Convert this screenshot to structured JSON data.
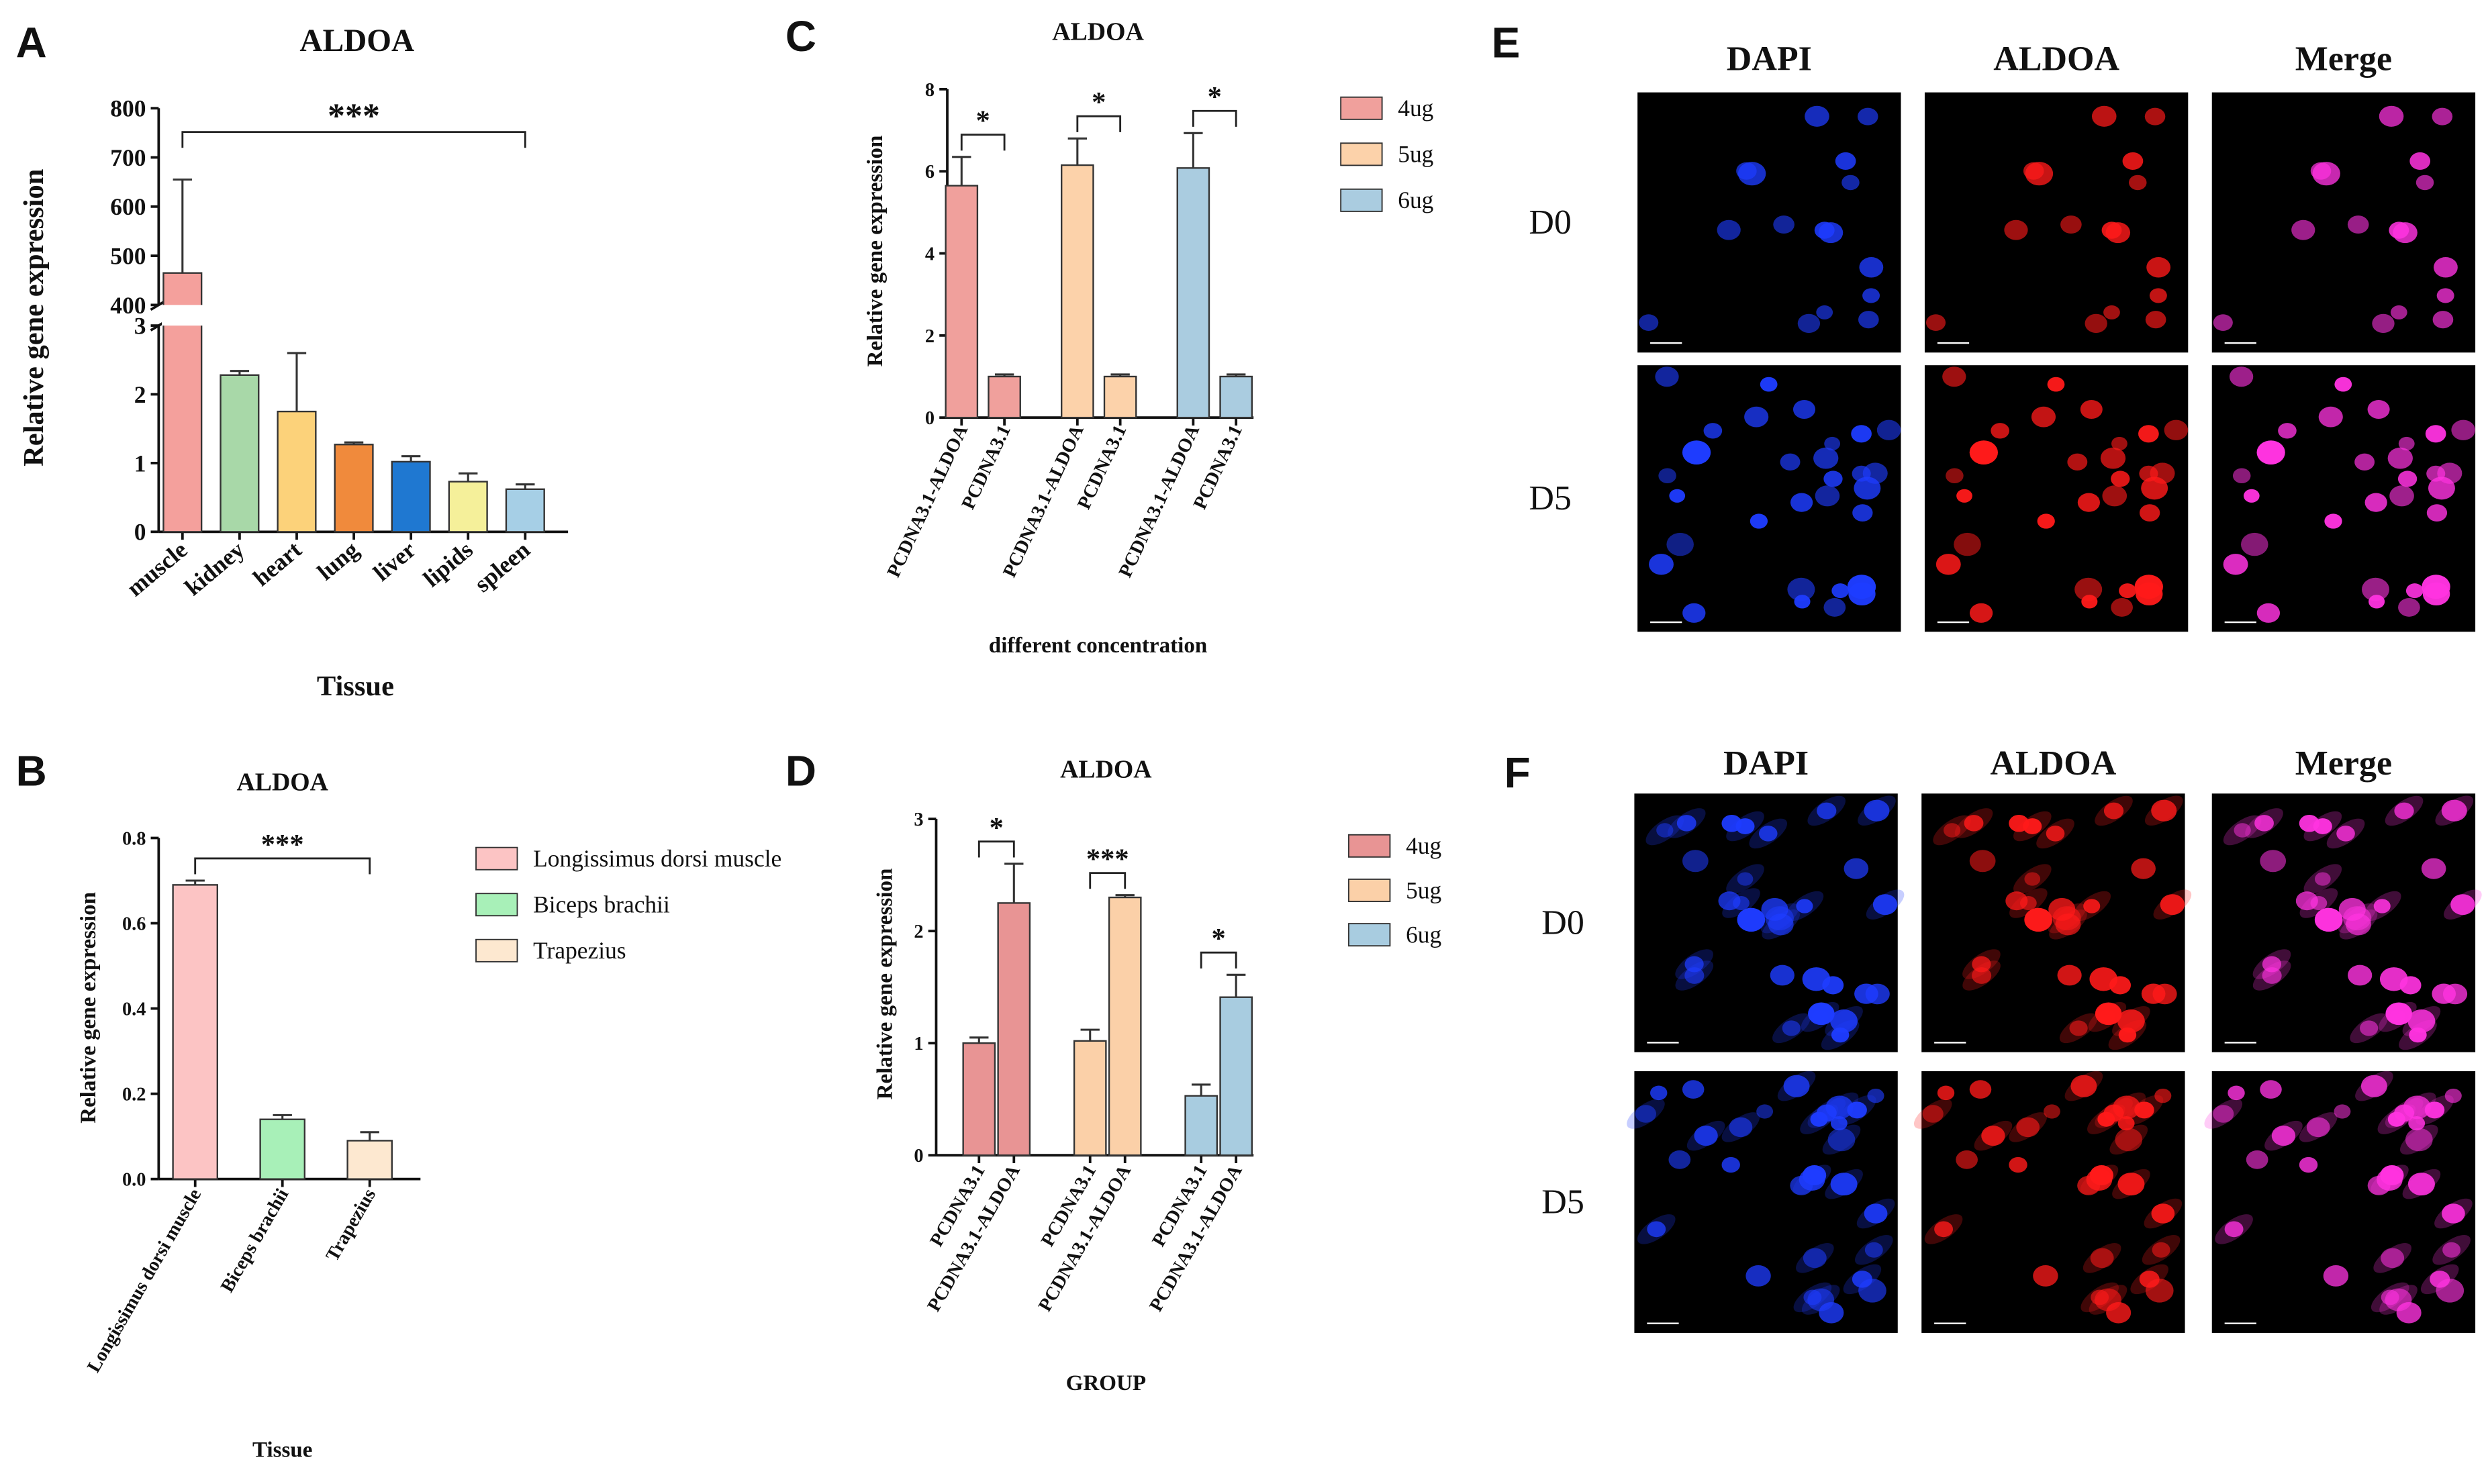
{
  "chart_data": [
    {
      "panel": "A",
      "type": "bar",
      "title": "ALDOA",
      "x_label": "Tissue",
      "y_label": "Relative gene expression",
      "categories": [
        "muscle",
        "kidney",
        "heart",
        "lung",
        "liver",
        "lipids",
        "spleen"
      ],
      "values": [
        465,
        2.28,
        1.75,
        1.27,
        1.02,
        0.73,
        0.62
      ],
      "errors": [
        190,
        0.06,
        0.85,
        0.03,
        0.08,
        0.12,
        0.07
      ],
      "colors": [
        "#f4a09c",
        "#a8d8a8",
        "#fcd27a",
        "#f08a3c",
        "#1f78d1",
        "#f5f09a",
        "#a6cfe6"
      ],
      "significance": "***",
      "ylim": [
        0,
        800
      ],
      "axis_break": [
        3,
        400
      ],
      "yticks": [
        0,
        1,
        2,
        3,
        400,
        500,
        600,
        700,
        800
      ]
    },
    {
      "panel": "B",
      "type": "bar",
      "title": "ALDOA",
      "x_label": "Tissue",
      "y_label": "Relative gene expression",
      "categories": [
        "Longissimus dorsi muscle",
        "Biceps brachii",
        "Trapezius"
      ],
      "values": [
        0.69,
        0.14,
        0.09
      ],
      "errors": [
        0.01,
        0.01,
        0.02
      ],
      "colors": [
        "#fcc4c4",
        "#a8f0b8",
        "#fde8d0"
      ],
      "significance": "***",
      "legend": true,
      "ylim": [
        0,
        0.8
      ],
      "yticks": [
        {
          "value": 0,
          "label": "0.0"
        },
        0.2,
        0.4,
        0.6,
        0.8
      ]
    },
    {
      "panel": "C",
      "type": "bar",
      "title": "ALDOA",
      "x_label": "different concentration",
      "y_label": "Relative gene expression",
      "categories": [
        "PCDNA3.1-ALDOA",
        "PCDNA3.1",
        "PCDNA3.1-ALDOA",
        "PCDNA3.1",
        "PCDNA3.1-ALDOA",
        "PCDNA3.1"
      ],
      "series": [
        {
          "name": "4ug",
          "color": "#f0a09c",
          "values": [
            5.65,
            1.0,
            null,
            null,
            null,
            null
          ],
          "errors": [
            0.7,
            0.05,
            null,
            null,
            null,
            null
          ],
          "significance": "*"
        },
        {
          "name": "5ug",
          "color": "#fcd2aa",
          "values": [
            null,
            null,
            6.15,
            1.0,
            null,
            null
          ],
          "errors": [
            null,
            null,
            0.65,
            0.05,
            null,
            null
          ],
          "significance": "*"
        },
        {
          "name": "6ug",
          "color": "#aacce0",
          "values": [
            null,
            null,
            null,
            null,
            6.08,
            1.0
          ],
          "errors": [
            null,
            null,
            null,
            null,
            0.85,
            0.05
          ],
          "significance": "*"
        }
      ],
      "legend": true,
      "ylim": [
        0,
        8
      ],
      "yticks": [
        0,
        2,
        4,
        6,
        8
      ]
    },
    {
      "panel": "D",
      "type": "bar",
      "title": "ALDOA",
      "x_label": "GROUP",
      "y_label": "Relative gene expression",
      "categories": [
        "PCDNA3.1",
        "PCDNA3.1-ALDOA",
        "PCDNA3.1",
        "PCDNA3.1-ALDOA",
        "PCDNA3.1",
        "PCDNA3.1-ALDOA"
      ],
      "series": [
        {
          "name": "4ug",
          "color": "#e89494",
          "values": [
            1.0,
            2.25,
            null,
            null,
            null,
            null
          ],
          "errors": [
            0.05,
            0.35,
            null,
            null,
            null,
            null
          ],
          "significance": "*"
        },
        {
          "name": "5ug",
          "color": "#fbd0a8",
          "values": [
            null,
            null,
            1.02,
            2.3,
            null,
            null
          ],
          "errors": [
            null,
            null,
            0.1,
            0.02,
            null,
            null
          ],
          "significance": "***"
        },
        {
          "name": "6ug",
          "color": "#a8cce0",
          "values": [
            null,
            null,
            null,
            null,
            0.53,
            1.41
          ],
          "errors": [
            null,
            null,
            null,
            null,
            0.1,
            0.2
          ],
          "significance": "*"
        }
      ],
      "legend": true,
      "ylim": [
        0,
        3
      ],
      "yticks": [
        0,
        1,
        2,
        3
      ]
    }
  ],
  "image_panels": [
    {
      "panel": "E",
      "columns": [
        "DAPI",
        "ALDOA",
        "Merge"
      ],
      "rows": [
        "D0",
        "D5"
      ]
    },
    {
      "panel": "F",
      "columns": [
        "DAPI",
        "ALDOA",
        "Merge"
      ],
      "rows": [
        "D0",
        "D5"
      ]
    }
  ]
}
